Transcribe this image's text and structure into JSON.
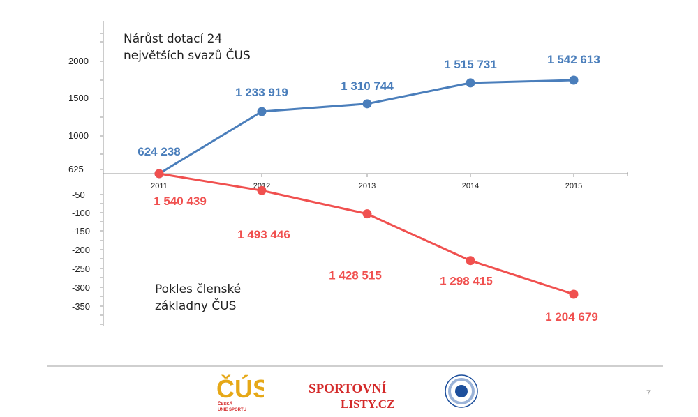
{
  "chart_data": {
    "type": "line",
    "x": [
      "2011",
      "2012",
      "2013",
      "2014",
      "2015"
    ],
    "upper_axis_ticks": [
      "2000",
      "1500",
      "1000",
      "625"
    ],
    "lower_axis_ticks": [
      "-50",
      "-100",
      "-150",
      "-200",
      "-250",
      "-300",
      "-350"
    ],
    "series": [
      {
        "name": "Nárůst dotací 24 největších svazů ČUS",
        "caption_lines": [
          "Nárůst dotací 24",
          "největších svazů ČUS"
        ],
        "color": "#4a7ebb",
        "values": [
          624238,
          1233919,
          1310744,
          1515731,
          1542613
        ],
        "labels": [
          "624 238",
          "1 233 919",
          "1 310 744",
          "1 515 731",
          "1 542 613"
        ]
      },
      {
        "name": "Pokles členské základny ČUS",
        "caption_lines": [
          "Pokles členské",
          "základny ČUS"
        ],
        "color": "#f0504f",
        "values": [
          1540439,
          1493446,
          1428515,
          1298415,
          1204679
        ],
        "labels": [
          "1 540 439",
          "1 493 446",
          "1 428 515",
          "1 298 415",
          "1 204 679"
        ]
      }
    ],
    "grid": false,
    "legend": "none"
  },
  "footer": {
    "page_number": "7",
    "logo_cus_text": "ČÚS",
    "logo_cus_subtitle": [
      "ČESKÁ",
      "UNIE SPORTU"
    ],
    "logo_sl_line1": "SPORTOVNÍ",
    "logo_sl_line2": "LISTY.CZ",
    "colors": {
      "gold": "#e6a817",
      "red": "#d42a2a",
      "blue": "#1d4f9c"
    }
  }
}
